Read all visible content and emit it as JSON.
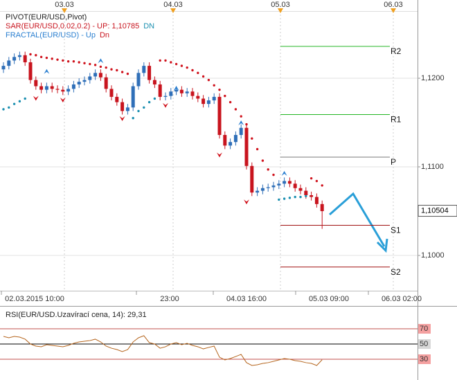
{
  "chart_data": [
    {
      "type": "candlestick",
      "pivot_label": "PIVOT(EUR/USD,Pivot)",
      "sar_label": "SAR(EUR/USD,0.02,0.2)  -  UP: 1,10785",
      "sar_dn": "DN",
      "fractal_label": "FRACTAL(EUR/USD)  -  Up",
      "fractal_dn": "Dn",
      "top_dates": [
        "03.03",
        "04.03",
        "05.03",
        "06.03"
      ],
      "time_labels": [
        "02.03.2015 10:00",
        "23:00",
        "04.03 16:00",
        "05.03 09:00",
        "06.03 02:00"
      ],
      "open": [
        1.121,
        1.1214,
        1.122,
        1.1224,
        1.1226,
        1.1218,
        1.1198,
        1.1191,
        1.1187,
        1.1191,
        1.1188,
        1.1187,
        1.1185,
        1.1188,
        1.1193,
        1.1196,
        1.1198,
        1.1202,
        1.1206,
        1.1201,
        1.1188,
        1.1179,
        1.1173,
        1.1163,
        1.1167,
        1.1191,
        1.1206,
        1.1214,
        1.1198,
        1.1193,
        1.1179,
        1.118,
        1.1185,
        1.1187,
        1.1183,
        1.1185,
        1.118,
        1.1177,
        1.1171,
        1.1175,
        1.1179,
        1.1136,
        1.1124,
        1.1128,
        1.1136,
        1.1144,
        1.1101,
        1.1071,
        1.1073,
        1.1076,
        1.1077,
        1.1079,
        1.1081,
        1.1084,
        1.1081,
        1.1076,
        1.1073,
        1.1068,
        1.1066,
        1.1058
      ],
      "high": [
        1.1218,
        1.1224,
        1.1228,
        1.123,
        1.123,
        1.1222,
        1.1202,
        1.1195,
        1.1195,
        1.1195,
        1.1192,
        1.1191,
        1.1192,
        1.1197,
        1.12,
        1.1202,
        1.1206,
        1.121,
        1.121,
        1.1205,
        1.1192,
        1.1183,
        1.1177,
        1.1171,
        1.1195,
        1.121,
        1.1218,
        1.1218,
        1.1202,
        1.1197,
        1.1184,
        1.1189,
        1.1191,
        1.1191,
        1.1189,
        1.1189,
        1.1184,
        1.1181,
        1.1179,
        1.1183,
        1.1183,
        1.114,
        1.1132,
        1.114,
        1.1148,
        1.1148,
        1.1105,
        1.1077,
        1.108,
        1.1081,
        1.1083,
        1.1085,
        1.1088,
        1.1088,
        1.1085,
        1.108,
        1.1077,
        1.1072,
        1.107,
        1.1062
      ],
      "low": [
        1.1206,
        1.121,
        1.1216,
        1.122,
        1.1214,
        1.1194,
        1.1187,
        1.1183,
        1.1183,
        1.1184,
        1.1183,
        1.1181,
        1.1181,
        1.1184,
        1.1189,
        1.1192,
        1.1194,
        1.1198,
        1.1197,
        1.1184,
        1.1175,
        1.1169,
        1.1159,
        1.1159,
        1.1163,
        1.1187,
        1.1202,
        1.1194,
        1.1189,
        1.1175,
        1.1175,
        1.1176,
        1.1181,
        1.1179,
        1.1179,
        1.1176,
        1.1173,
        1.1167,
        1.1167,
        1.1171,
        1.1132,
        1.112,
        1.112,
        1.1124,
        1.1132,
        1.1097,
        1.1067,
        1.1067,
        1.1069,
        1.1072,
        1.1073,
        1.1075,
        1.1077,
        1.1077,
        1.1072,
        1.1069,
        1.1064,
        1.1062,
        1.1054,
        1.103
      ],
      "close": [
        1.1214,
        1.122,
        1.1224,
        1.1226,
        1.1218,
        1.1198,
        1.1191,
        1.1187,
        1.1191,
        1.1188,
        1.1187,
        1.1185,
        1.1188,
        1.1193,
        1.1196,
        1.1198,
        1.1202,
        1.1206,
        1.1201,
        1.1188,
        1.1179,
        1.1173,
        1.1163,
        1.1167,
        1.1191,
        1.1206,
        1.1214,
        1.1198,
        1.1193,
        1.1179,
        1.118,
        1.1185,
        1.1187,
        1.1183,
        1.1185,
        1.118,
        1.1177,
        1.1171,
        1.1175,
        1.1179,
        1.1136,
        1.1124,
        1.1128,
        1.1136,
        1.1144,
        1.1101,
        1.1071,
        1.1073,
        1.1076,
        1.1077,
        1.1079,
        1.1081,
        1.1084,
        1.1081,
        1.1076,
        1.1073,
        1.1068,
        1.1066,
        1.1058,
        1.105
      ],
      "up_color": "#2f6fb8",
      "down_color": "#c8141e",
      "sar": {
        "values": [
          1.1165,
          1.1167,
          1.1171,
          1.1174,
          1.1177,
          1.1227,
          1.1226,
          1.1224,
          1.1223,
          1.1222,
          1.1221,
          1.122,
          1.1219,
          1.1219,
          1.1218,
          1.1217,
          1.1216,
          1.1215,
          1.1213,
          1.1212,
          1.121,
          1.1209,
          1.1207,
          1.1205,
          1.1155,
          1.1163,
          1.1167,
          1.1173,
          1.1177,
          1.122,
          1.122,
          1.1218,
          1.1216,
          1.1214,
          1.1212,
          1.1209,
          1.1206,
          1.1202,
          1.1198,
          1.1192,
          1.1187,
          1.118,
          1.1173,
          1.1165,
          1.1157,
          1.1148,
          1.1132,
          1.112,
          1.1107,
          1.1097,
          1.1091,
          1.1063,
          1.1064,
          1.1065,
          1.1066,
          1.1066,
          1.1067,
          1.1087,
          1.1084,
          1.1079
        ],
        "up_color": "#1a8fb0",
        "down_color": "#d0141e"
      },
      "fractal_up": {
        "color": "#2a7fd0",
        "values": [
          null,
          null,
          null,
          null,
          null,
          null,
          null,
          null,
          1.1208,
          null,
          null,
          null,
          null,
          null,
          null,
          null,
          null,
          null,
          1.122,
          null,
          null,
          null,
          null,
          null,
          null,
          null,
          null,
          null,
          null,
          null,
          null,
          null,
          1.1189,
          null,
          null,
          null,
          null,
          null,
          null,
          null,
          null,
          null,
          null,
          null,
          1.115,
          null,
          null,
          null,
          null,
          null,
          null,
          null,
          1.1093,
          null,
          null,
          null,
          null,
          null,
          null,
          null
        ]
      },
      "fractal_down": {
        "color": "#d0141e",
        "values": [
          null,
          null,
          null,
          null,
          null,
          null,
          1.1177,
          null,
          null,
          null,
          null,
          1.1175,
          null,
          null,
          null,
          null,
          null,
          null,
          null,
          null,
          null,
          null,
          1.1154,
          null,
          null,
          null,
          null,
          null,
          null,
          null,
          1.1169,
          null,
          null,
          null,
          null,
          null,
          null,
          null,
          null,
          null,
          1.1113,
          null,
          null,
          null,
          null,
          1.106,
          null,
          null,
          null,
          null,
          null,
          null,
          null,
          null,
          null,
          null,
          null,
          null,
          null,
          null
        ]
      },
      "pivots": [
        {
          "label": "R2",
          "value": 1.1236,
          "color": "#22b522"
        },
        {
          "label": "R1",
          "value": 1.1159,
          "color": "#22b522"
        },
        {
          "label": "P",
          "value": 1.1111,
          "color": "#777777"
        },
        {
          "label": "S1",
          "value": 1.1034,
          "color": "#a01010"
        },
        {
          "label": "S2",
          "value": 1.0987,
          "color": "#a01010"
        }
      ],
      "ylim": [
        1.09602,
        1.12883
      ],
      "yticks": [
        {
          "value": 1.12,
          "label": "1,1200"
        },
        {
          "value": 1.11,
          "label": "1,1100"
        },
        {
          "value": 1.1,
          "label": "1,1000"
        }
      ],
      "last_price": {
        "value": 1.10504,
        "label": "1,10504"
      },
      "grid": true
    },
    {
      "type": "line",
      "title": "RSI(EUR/USD.Uzavírací cena, 14): 29,31",
      "color": "#b5651d",
      "values": [
        60.0,
        58.2,
        60.0,
        59.1,
        56.4,
        50.0,
        47.3,
        46.4,
        49.1,
        48.2,
        47.3,
        46.4,
        48.2,
        50.9,
        52.7,
        53.6,
        54.5,
        56.4,
        52.7,
        47.3,
        44.5,
        42.7,
        40.0,
        42.7,
        52.7,
        58.2,
        60.9,
        51.8,
        50.0,
        44.5,
        46.4,
        50.0,
        51.8,
        49.1,
        50.9,
        48.2,
        46.4,
        43.6,
        45.5,
        47.3,
        32.7,
        29.1,
        30.9,
        33.6,
        36.4,
        25.5,
        21.8,
        22.7,
        24.5,
        25.5,
        27.3,
        29.1,
        30.9,
        30.0,
        28.2,
        27.3,
        25.5,
        24.5,
        21.8,
        29.31
      ],
      "ylim": [
        2.7,
        96.4
      ],
      "yticks": [
        70,
        50,
        30
      ]
    }
  ]
}
